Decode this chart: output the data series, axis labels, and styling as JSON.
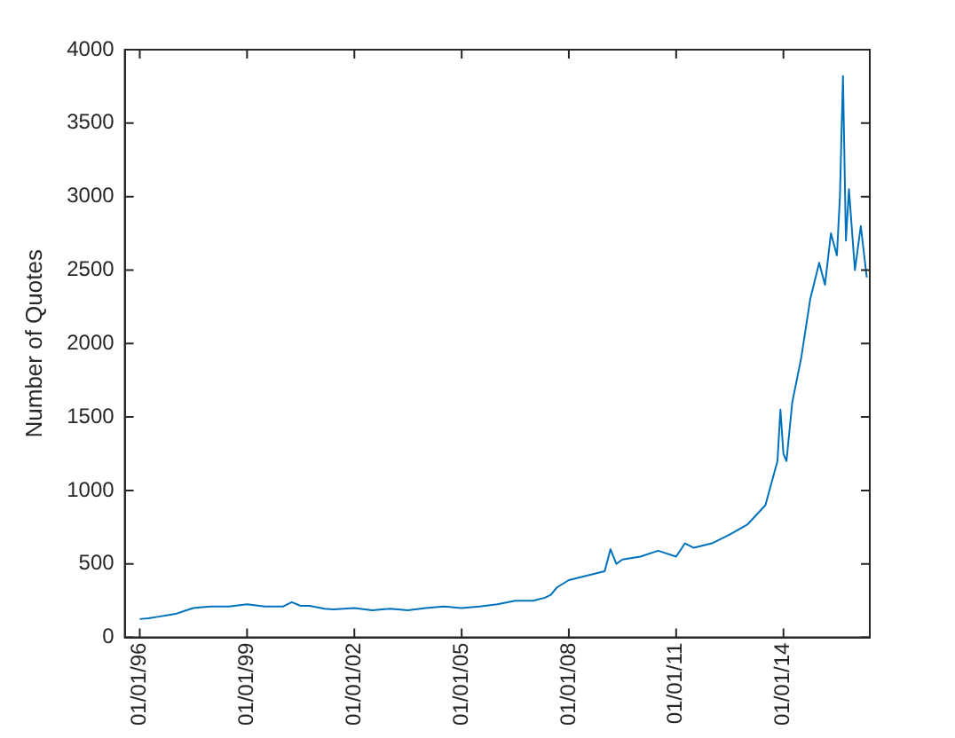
{
  "chart_data": {
    "type": "line",
    "ylabel": "Number of Quotes",
    "x": [
      "1996-01-01",
      "1996-04-01",
      "1996-07-01",
      "1996-10-01",
      "1997-01-01",
      "1997-04-01",
      "1997-07-01",
      "1997-10-01",
      "1998-01-01",
      "1998-07-01",
      "1999-01-01",
      "1999-07-01",
      "2000-01-01",
      "2000-04-01",
      "2000-07-01",
      "2000-10-01",
      "2001-03-01",
      "2001-06-01",
      "2002-01-01",
      "2002-07-01",
      "2003-01-01",
      "2003-07-01",
      "2004-01-01",
      "2004-07-01",
      "2005-01-01",
      "2005-07-01",
      "2006-01-01",
      "2006-07-01",
      "2007-01-01",
      "2007-05-01",
      "2007-07-01",
      "2007-09-01",
      "2008-01-01",
      "2008-07-01",
      "2009-01-01",
      "2009-03-01",
      "2009-05-01",
      "2009-07-01",
      "2010-01-01",
      "2010-07-01",
      "2011-01-01",
      "2011-04-01",
      "2011-07-01",
      "2012-01-01",
      "2012-07-01",
      "2013-01-01",
      "2013-07-01",
      "2013-11-01",
      "2013-12-01",
      "2014-01-01",
      "2014-02-01",
      "2014-04-01",
      "2014-07-01",
      "2014-10-01",
      "2015-01-01",
      "2015-03-01",
      "2015-05-01",
      "2015-07-01",
      "2015-08-01",
      "2015-09-01",
      "2015-10-01",
      "2015-11-01",
      "2016-01-01",
      "2016-03-01",
      "2016-05-01"
    ],
    "series": [
      {
        "color": "#0072bd",
        "values": [
          125,
          130,
          140,
          150,
          160,
          180,
          200,
          205,
          210,
          210,
          225,
          210,
          210,
          240,
          215,
          215,
          195,
          190,
          200,
          185,
          195,
          185,
          200,
          210,
          200,
          210,
          225,
          250,
          250,
          270,
          290,
          340,
          390,
          420,
          450,
          600,
          500,
          530,
          550,
          590,
          550,
          640,
          610,
          640,
          700,
          770,
          900,
          1200,
          1550,
          1250,
          1200,
          1600,
          1900,
          2300,
          2550,
          2400,
          2750,
          2600,
          3000,
          3820,
          2700,
          3050,
          2500,
          2800,
          2450
        ]
      }
    ],
    "xlim": [
      "1995-08-01",
      "2016-06-01"
    ],
    "xticks": [
      {
        "value": "1996-01-01",
        "label": "01/01/96"
      },
      {
        "value": "1999-01-01",
        "label": "01/01/99"
      },
      {
        "value": "2002-01-01",
        "label": "01/01/02"
      },
      {
        "value": "2005-01-01",
        "label": "01/01/05"
      },
      {
        "value": "2008-01-01",
        "label": "01/01/08"
      },
      {
        "value": "2011-01-01",
        "label": "01/01/11"
      },
      {
        "value": "2014-01-01",
        "label": "01/01/14"
      }
    ],
    "ylim": [
      0,
      4000
    ],
    "yticks": [
      0,
      500,
      1000,
      1500,
      2000,
      2500,
      3000,
      3500,
      4000
    ],
    "grid": false,
    "legend": false,
    "marker": "none",
    "line_style": "solid"
  }
}
